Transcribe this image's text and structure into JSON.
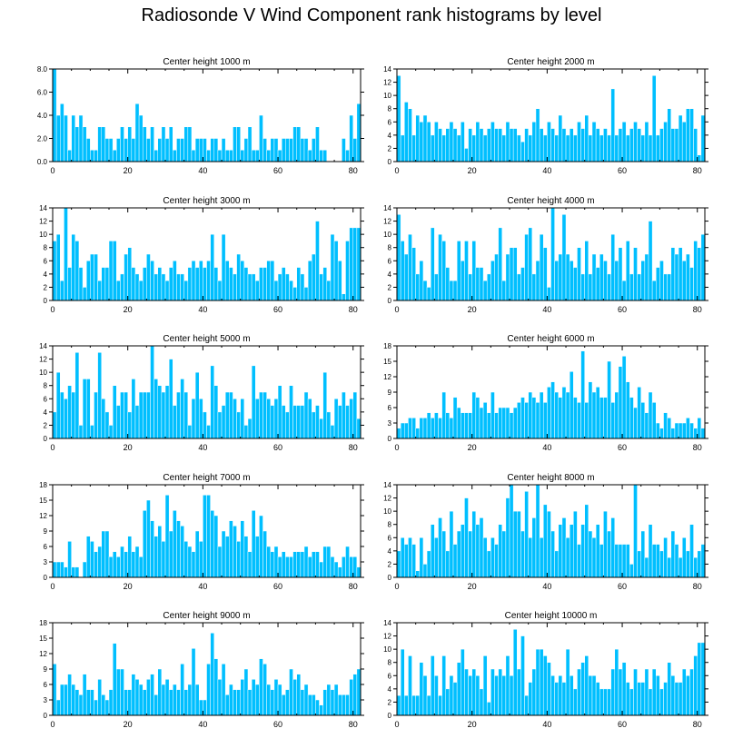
{
  "title": "Radiosonde V Wind Component rank histograms by level",
  "colors": {
    "bar": "#00BFFF",
    "bar_edge": "#ffffff",
    "axis": "#000000"
  },
  "chart_data": [
    {
      "type": "bar",
      "title": "Center height 1000 m",
      "xlim": [
        0,
        82
      ],
      "ylim": [
        0,
        8
      ],
      "xticks": [
        0,
        20,
        40,
        60,
        80
      ],
      "yticks": [
        0,
        2,
        4,
        6,
        8
      ],
      "ytick_labels": [
        "0.0",
        "2.0",
        "4.0",
        "6.0",
        "8.0"
      ],
      "values": [
        8,
        4,
        5,
        4,
        1,
        4,
        3,
        4,
        3,
        2,
        1,
        1,
        3,
        3,
        2,
        2,
        1,
        2,
        3,
        2,
        3,
        2,
        5,
        4,
        3,
        2,
        3,
        1,
        2,
        3,
        2,
        3,
        1,
        2,
        2,
        3,
        3,
        1,
        2,
        2,
        2,
        1,
        2,
        2,
        1,
        2,
        1,
        1,
        3,
        3,
        1,
        2,
        3,
        1,
        1,
        4,
        2,
        1,
        2,
        2,
        1,
        2,
        2,
        2,
        3,
        3,
        2,
        2,
        1,
        2,
        3,
        1,
        1,
        0,
        0,
        0,
        0,
        2,
        1,
        4,
        2,
        5
      ]
    },
    {
      "type": "bar",
      "title": "Center height 2000 m",
      "xlim": [
        0,
        82
      ],
      "ylim": [
        0,
        14
      ],
      "xticks": [
        0,
        20,
        40,
        60,
        80
      ],
      "yticks": [
        0,
        2,
        4,
        6,
        8,
        10,
        12,
        14
      ],
      "ytick_labels": [
        "0",
        "2",
        "4",
        "6",
        "8",
        "10",
        "12",
        "14"
      ],
      "values": [
        13,
        4,
        9,
        8,
        4,
        7,
        6,
        7,
        6,
        4,
        6,
        5,
        4,
        5,
        6,
        5,
        4,
        6,
        2,
        5,
        4,
        6,
        5,
        4,
        5,
        6,
        5,
        5,
        4,
        6,
        5,
        5,
        4,
        3,
        5,
        4,
        6,
        8,
        5,
        4,
        6,
        5,
        4,
        7,
        5,
        4,
        5,
        4,
        6,
        5,
        7,
        4,
        6,
        5,
        4,
        5,
        4,
        11,
        4,
        5,
        6,
        4,
        5,
        6,
        5,
        4,
        6,
        4,
        13,
        4,
        5,
        6,
        8,
        5,
        5,
        7,
        6,
        8,
        8,
        5,
        1,
        7
      ]
    },
    {
      "type": "bar",
      "title": "Center height 3000 m",
      "xlim": [
        0,
        82
      ],
      "ylim": [
        0,
        14
      ],
      "xticks": [
        0,
        20,
        40,
        60,
        80
      ],
      "yticks": [
        0,
        2,
        4,
        6,
        8,
        10,
        12,
        14
      ],
      "ytick_labels": [
        "0",
        "2",
        "4",
        "6",
        "8",
        "10",
        "12",
        "14"
      ],
      "values": [
        9,
        10,
        3,
        14,
        5,
        10,
        9,
        5,
        2,
        6,
        7,
        7,
        3,
        5,
        5,
        9,
        9,
        3,
        4,
        7,
        8,
        5,
        4,
        3,
        5,
        7,
        6,
        4,
        5,
        4,
        3,
        5,
        6,
        4,
        4,
        3,
        5,
        6,
        5,
        6,
        5,
        6,
        10,
        5,
        3,
        10,
        6,
        5,
        4,
        7,
        6,
        5,
        4,
        4,
        3,
        5,
        5,
        6,
        6,
        3,
        4,
        5,
        4,
        3,
        2,
        5,
        4,
        2,
        6,
        7,
        12,
        4,
        5,
        3,
        10,
        9,
        6,
        1,
        9,
        11,
        11,
        11
      ]
    },
    {
      "type": "bar",
      "title": "Center height 4000 m",
      "xlim": [
        0,
        82
      ],
      "ylim": [
        0,
        14
      ],
      "xticks": [
        0,
        20,
        40,
        60,
        80
      ],
      "yticks": [
        0,
        2,
        4,
        6,
        8,
        10,
        12,
        14
      ],
      "ytick_labels": [
        "0",
        "2",
        "4",
        "6",
        "8",
        "10",
        "12",
        "14"
      ],
      "values": [
        13,
        9,
        7,
        10,
        8,
        4,
        6,
        3,
        2,
        11,
        4,
        10,
        9,
        5,
        3,
        3,
        9,
        6,
        9,
        4,
        9,
        5,
        5,
        3,
        4,
        6,
        7,
        11,
        3,
        7,
        8,
        8,
        4,
        5,
        10,
        11,
        4,
        6,
        10,
        8,
        2,
        14,
        6,
        7,
        13,
        7,
        6,
        5,
        8,
        4,
        9,
        4,
        7,
        5,
        7,
        6,
        4,
        10,
        6,
        8,
        3,
        9,
        4,
        8,
        4,
        6,
        7,
        12,
        3,
        5,
        6,
        4,
        4,
        8,
        7,
        8,
        6,
        7,
        5,
        9,
        8,
        10
      ]
    },
    {
      "type": "bar",
      "title": "Center height 5000 m",
      "xlim": [
        0,
        82
      ],
      "ylim": [
        0,
        14
      ],
      "xticks": [
        0,
        20,
        40,
        60,
        80
      ],
      "yticks": [
        0,
        2,
        4,
        6,
        8,
        10,
        12,
        14
      ],
      "ytick_labels": [
        "0",
        "2",
        "4",
        "6",
        "8",
        "10",
        "12",
        "14"
      ],
      "values": [
        4,
        10,
        7,
        6,
        8,
        7,
        13,
        2,
        9,
        9,
        2,
        7,
        13,
        6,
        4,
        2,
        8,
        5,
        7,
        7,
        4,
        9,
        5,
        7,
        7,
        7,
        14,
        9,
        8,
        7,
        8,
        12,
        5,
        7,
        9,
        7,
        2,
        6,
        10,
        6,
        4,
        2,
        11,
        8,
        4,
        5,
        7,
        7,
        6,
        4,
        6,
        2,
        3,
        11,
        6,
        7,
        7,
        6,
        5,
        6,
        8,
        5,
        4,
        8,
        5,
        5,
        5,
        7,
        6,
        4,
        5,
        3,
        10,
        4,
        2,
        6,
        5,
        7,
        5,
        6,
        7,
        3
      ]
    },
    {
      "type": "bar",
      "title": "Center height 6000 m",
      "xlim": [
        0,
        82
      ],
      "ylim": [
        0,
        18
      ],
      "xticks": [
        0,
        20,
        40,
        60,
        80
      ],
      "yticks": [
        0,
        3,
        6,
        9,
        12,
        15,
        18
      ],
      "ytick_labels": [
        "0",
        "3",
        "6",
        "9",
        "12",
        "15",
        "18"
      ],
      "values": [
        2,
        3,
        3,
        4,
        4,
        2,
        4,
        4,
        5,
        4,
        5,
        4,
        9,
        5,
        4,
        8,
        6,
        5,
        5,
        5,
        9,
        8,
        6,
        7,
        5,
        9,
        5,
        6,
        6,
        6,
        5,
        6,
        7,
        8,
        7,
        9,
        8,
        7,
        9,
        7,
        10,
        11,
        9,
        8,
        10,
        9,
        13,
        8,
        7,
        17,
        7,
        11,
        9,
        10,
        8,
        8,
        15,
        7,
        9,
        14,
        16,
        11,
        8,
        6,
        10,
        7,
        5,
        9,
        7,
        3,
        2,
        5,
        4,
        2,
        3,
        3,
        3,
        4,
        3,
        2,
        4,
        2
      ]
    },
    {
      "type": "bar",
      "title": "Center height 7000 m",
      "xlim": [
        0,
        82
      ],
      "ylim": [
        0,
        18
      ],
      "xticks": [
        0,
        20,
        40,
        60,
        80
      ],
      "yticks": [
        0,
        3,
        6,
        9,
        12,
        15,
        18
      ],
      "ytick_labels": [
        "0",
        "3",
        "6",
        "9",
        "12",
        "15",
        "18"
      ],
      "values": [
        3,
        3,
        3,
        2,
        7,
        2,
        2,
        0,
        3,
        8,
        7,
        5,
        6,
        9,
        9,
        4,
        5,
        4,
        6,
        5,
        8,
        5,
        6,
        4,
        13,
        15,
        11,
        8,
        10,
        7,
        16,
        9,
        13,
        11,
        10,
        7,
        6,
        5,
        9,
        7,
        16,
        16,
        13,
        12,
        6,
        9,
        8,
        11,
        10,
        7,
        11,
        8,
        5,
        13,
        8,
        12,
        9,
        6,
        5,
        6,
        4,
        5,
        4,
        4,
        5,
        5,
        5,
        6,
        4,
        5,
        5,
        3,
        6,
        6,
        4,
        3,
        2,
        4,
        6,
        4,
        4,
        2
      ]
    },
    {
      "type": "bar",
      "title": "Center height 8000 m",
      "xlim": [
        0,
        82
      ],
      "ylim": [
        0,
        14
      ],
      "xticks": [
        0,
        20,
        40,
        60,
        80
      ],
      "yticks": [
        0,
        2,
        4,
        6,
        8,
        10,
        12,
        14
      ],
      "ytick_labels": [
        "0",
        "2",
        "4",
        "6",
        "8",
        "10",
        "12",
        "14"
      ],
      "values": [
        4,
        6,
        5,
        6,
        5,
        1,
        6,
        2,
        4,
        8,
        6,
        9,
        7,
        4,
        10,
        5,
        7,
        8,
        12,
        7,
        10,
        8,
        9,
        6,
        4,
        6,
        5,
        8,
        7,
        12,
        14,
        10,
        10,
        7,
        13,
        6,
        9,
        14,
        6,
        11,
        10,
        7,
        4,
        8,
        9,
        6,
        8,
        10,
        5,
        8,
        11,
        7,
        6,
        8,
        5,
        10,
        7,
        9,
        5,
        5,
        5,
        5,
        2,
        14,
        4,
        7,
        3,
        8,
        5,
        5,
        4,
        6,
        3,
        7,
        5,
        3,
        6,
        4,
        8,
        3,
        4,
        5
      ]
    },
    {
      "type": "bar",
      "title": "Center height 9000 m",
      "xlim": [
        0,
        82
      ],
      "ylim": [
        0,
        18
      ],
      "xticks": [
        0,
        20,
        40,
        60,
        80
      ],
      "yticks": [
        0,
        3,
        6,
        9,
        12,
        15,
        18
      ],
      "ytick_labels": [
        "0",
        "3",
        "6",
        "9",
        "12",
        "15",
        "18"
      ],
      "values": [
        10,
        3,
        6,
        6,
        8,
        6,
        5,
        4,
        8,
        5,
        5,
        3,
        7,
        4,
        3,
        5,
        14,
        9,
        9,
        5,
        5,
        8,
        7,
        6,
        5,
        7,
        8,
        4,
        9,
        6,
        7,
        5,
        6,
        5,
        10,
        5,
        6,
        13,
        6,
        3,
        3,
        10,
        16,
        11,
        7,
        10,
        4,
        6,
        5,
        5,
        7,
        9,
        5,
        7,
        6,
        11,
        10,
        6,
        5,
        7,
        6,
        4,
        5,
        9,
        7,
        8,
        5,
        6,
        4,
        4,
        3,
        2,
        5,
        6,
        5,
        6,
        4,
        4,
        4,
        7,
        8,
        9
      ]
    },
    {
      "type": "bar",
      "title": "Center height 10000 m",
      "xlim": [
        0,
        82
      ],
      "ylim": [
        0,
        14
      ],
      "xticks": [
        0,
        20,
        40,
        60,
        80
      ],
      "yticks": [
        0,
        2,
        4,
        6,
        8,
        10,
        12,
        14
      ],
      "ytick_labels": [
        "0",
        "2",
        "4",
        "6",
        "8",
        "10",
        "12",
        "14"
      ],
      "values": [
        3,
        10,
        3,
        9,
        3,
        3,
        8,
        6,
        3,
        9,
        6,
        3,
        9,
        4,
        6,
        5,
        8,
        10,
        7,
        6,
        7,
        6,
        4,
        9,
        2,
        7,
        6,
        7,
        6,
        9,
        6,
        13,
        7,
        12,
        3,
        5,
        7,
        10,
        10,
        9,
        8,
        6,
        5,
        6,
        5,
        10,
        6,
        4,
        7,
        8,
        9,
        6,
        6,
        5,
        4,
        4,
        4,
        7,
        10,
        7,
        8,
        5,
        4,
        7,
        5,
        5,
        7,
        4,
        7,
        6,
        4,
        5,
        8,
        6,
        5,
        5,
        7,
        6,
        7,
        9,
        11,
        11
      ]
    }
  ]
}
